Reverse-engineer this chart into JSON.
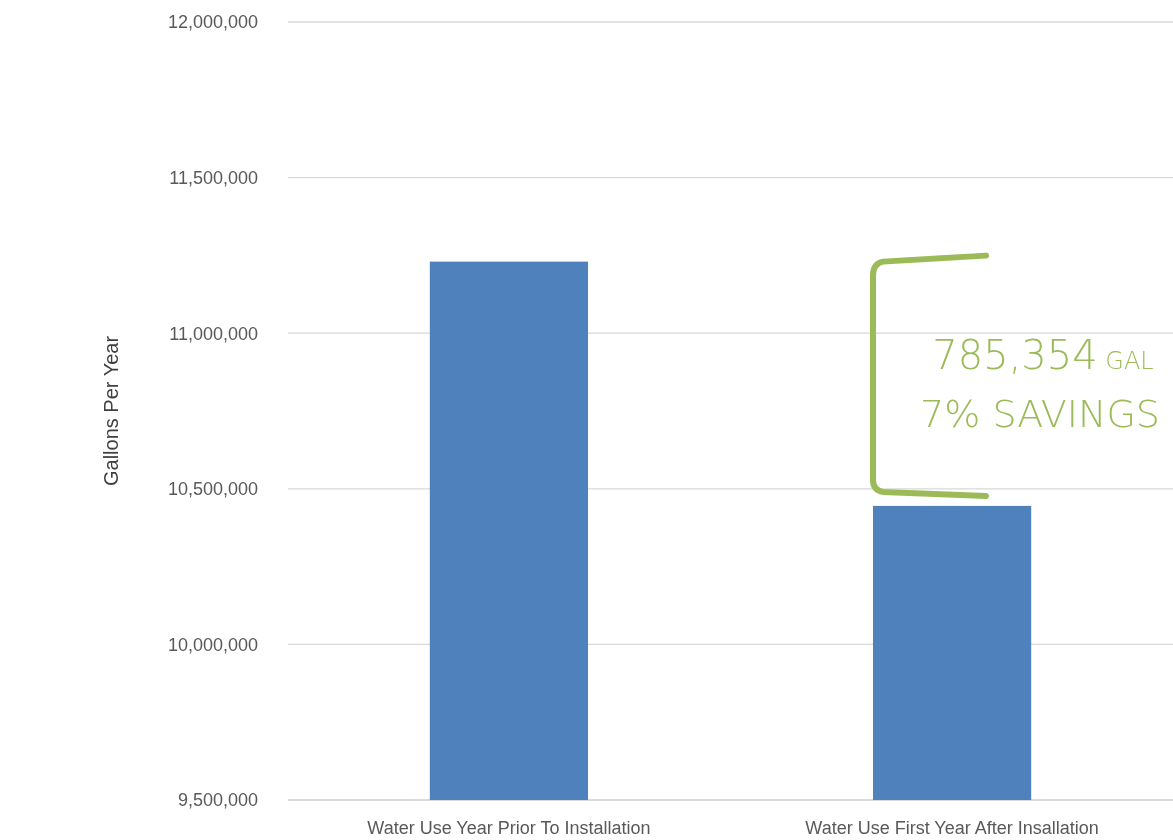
{
  "chart_data": {
    "type": "bar",
    "ylabel": "Gallons Per Year",
    "categories": [
      "Water Use Year Prior To Installation",
      "Water Use First Year After Insallation"
    ],
    "values": [
      11230000,
      10445000
    ],
    "color": "#4f81bd",
    "ylim": [
      9500000,
      12000000
    ],
    "yticks": [
      {
        "value": 9500000,
        "label": "9,500,000"
      },
      {
        "value": 10000000,
        "label": "10,000,000"
      },
      {
        "value": 10500000,
        "label": "10,500,000"
      },
      {
        "value": 11000000,
        "label": "11,000,000"
      },
      {
        "value": 11500000,
        "label": "11,500,000"
      },
      {
        "value": 12000000,
        "label": "12,000,000"
      }
    ],
    "grid": "y",
    "annotations": [
      "785,354 GAL",
      "7% SAVINGS"
    ]
  }
}
